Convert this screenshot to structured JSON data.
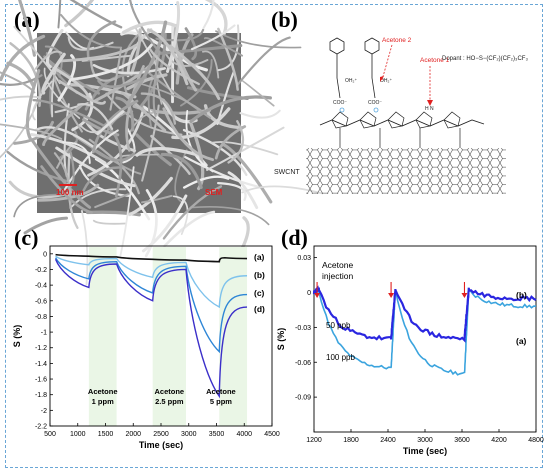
{
  "figure": {
    "panel_a": {
      "label": "(a)",
      "scale_text": "100 nm",
      "sem_text": "SEM",
      "accent_color": "#e02020"
    },
    "panel_b": {
      "label": "(b)",
      "acetone_2": "Acetone 2",
      "acetone_1": "Acetone 1",
      "dopant": "Dopant : HO−S−(CF₂)(CF₂)₃CF₃",
      "oh_label": "OH₂⁺",
      "coo_label": "COO⁻",
      "nh_label": "H N",
      "swcnt_label": "SWCNT"
    },
    "panel_c": {
      "label": "(c)",
      "curve_labels": [
        "(a)",
        "(b)",
        "(c)",
        "(d)"
      ],
      "annotations": [
        "Acetone 1 ppm",
        "Acetone 2.5 ppm",
        "Acetone 5 ppm"
      ]
    },
    "panel_d": {
      "label": "(d)",
      "annotation": "Acetone injection",
      "series_labels": [
        "(b)",
        "(a)",
        "50 ppb",
        "100 ppb"
      ]
    }
  },
  "chart_data": [
    {
      "type": "line",
      "panel": "(c)",
      "xlabel": "Time (sec)",
      "ylabel": "S (%)",
      "xlim": [
        500,
        4500
      ],
      "ylim": [
        -2.2,
        0.1
      ],
      "xticks": [
        500,
        1000,
        1500,
        2000,
        2500,
        3000,
        3500,
        4000,
        4500
      ],
      "yticks": [
        0,
        -0.2,
        -0.4,
        -0.6,
        -0.8,
        -1,
        -1.2,
        -1.4,
        -1.6,
        -1.8,
        -2,
        -2.2
      ],
      "exposure_windows": [
        [
          1200,
          1700
        ],
        [
          2350,
          2950
        ],
        [
          3550,
          4050
        ]
      ],
      "series": [
        {
          "name": "(a)",
          "color": "#111111",
          "x": [
            600,
            1200,
            1700,
            2350,
            2950,
            3550,
            3650,
            4050
          ],
          "y": [
            -0.01,
            -0.03,
            -0.04,
            -0.07,
            -0.08,
            -0.1,
            -0.05,
            -0.06
          ]
        },
        {
          "name": "(b)",
          "color": "#7ec2ec",
          "x": [
            600,
            1200,
            1700,
            2350,
            2950,
            3550,
            4050
          ],
          "y": [
            -0.03,
            -0.14,
            -0.06,
            -0.3,
            -0.11,
            -0.68,
            -0.28
          ]
        },
        {
          "name": "(c)",
          "color": "#2e86d6",
          "x": [
            600,
            1200,
            1700,
            2350,
            2950,
            3550,
            4050
          ],
          "y": [
            -0.05,
            -0.32,
            -0.1,
            -0.5,
            -0.16,
            -1.25,
            -0.52
          ]
        },
        {
          "name": "(d)",
          "color": "#3b2fc9",
          "x": [
            600,
            1200,
            1700,
            2350,
            2950,
            3550,
            4050
          ],
          "y": [
            -0.07,
            -0.43,
            -0.13,
            -0.6,
            -0.2,
            -1.82,
            -0.68
          ]
        }
      ]
    },
    {
      "type": "line",
      "panel": "(d)",
      "xlabel": "Time (sec)",
      "ylabel": "S (%)",
      "xlim": [
        1200,
        4800
      ],
      "ylim": [
        -0.12,
        0.04
      ],
      "xticks": [
        1200,
        1800,
        2400,
        3000,
        3600,
        4200,
        4800
      ],
      "yticks": [
        0.03,
        0,
        -0.03,
        -0.06,
        -0.09
      ],
      "injection_times": [
        1250,
        2450,
        3640
      ],
      "series": [
        {
          "name": "(b)",
          "color": "#2a26e0",
          "x": [
            1200,
            1280,
            2450,
            2520,
            3640,
            3710,
            4800
          ],
          "y": [
            0.0,
            0.003,
            -0.04,
            0.003,
            -0.04,
            0.003,
            -0.005
          ]
        },
        {
          "name": "(a)",
          "color": "#3ba4de",
          "x": [
            1200,
            1280,
            2450,
            2520,
            3640,
            3710,
            4800
          ],
          "y": [
            0.0,
            0.002,
            -0.065,
            0.002,
            -0.07,
            0.002,
            -0.012
          ]
        }
      ]
    }
  ]
}
